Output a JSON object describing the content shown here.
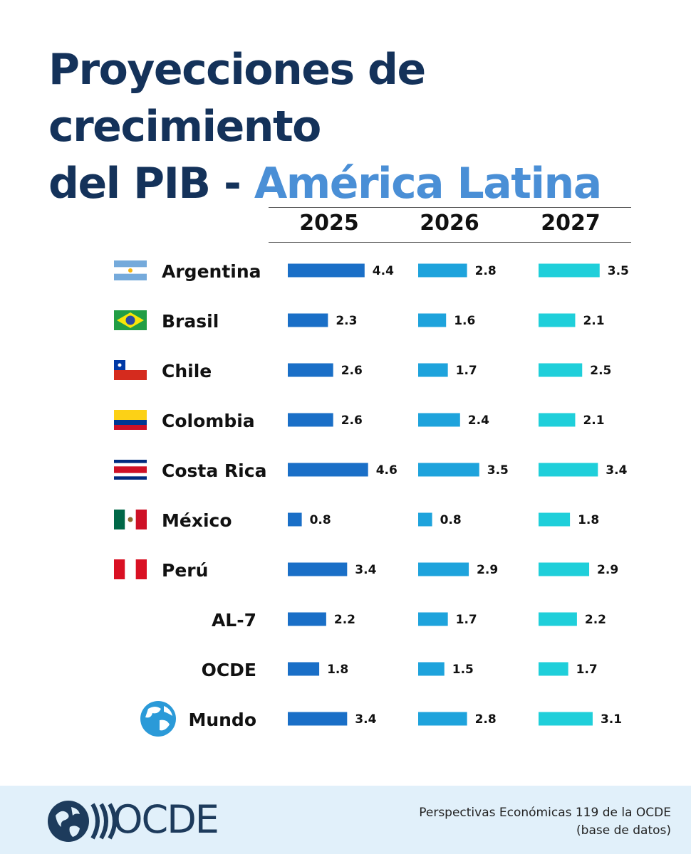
{
  "title_line1": "Proyecciones de crecimiento",
  "title_line2_dark": "del PIB - ",
  "title_line2_accent": "América Latina",
  "years": [
    "2025",
    "2026",
    "2027"
  ],
  "chart_data": {
    "type": "bar",
    "categories": [
      "Argentina",
      "Brasil",
      "Chile",
      "Colombia",
      "Costa Rica",
      "México",
      "Perú",
      "AL-7",
      "OCDE",
      "Mundo"
    ],
    "series": [
      {
        "name": "2025",
        "values": [
          4.4,
          2.3,
          2.6,
          2.6,
          4.6,
          0.8,
          3.4,
          2.2,
          1.8,
          3.4
        ]
      },
      {
        "name": "2026",
        "values": [
          2.8,
          1.6,
          1.7,
          2.4,
          3.5,
          0.8,
          2.9,
          1.7,
          1.5,
          2.8
        ]
      },
      {
        "name": "2027",
        "values": [
          3.5,
          2.1,
          2.5,
          2.1,
          3.4,
          1.8,
          2.9,
          2.2,
          1.7,
          3.1
        ]
      }
    ],
    "colors": [
      "#1a6fc7",
      "#1ea3dc",
      "#1fcfda"
    ],
    "icons": [
      "flag-argentina",
      "flag-brazil",
      "flag-chile",
      "flag-colombia",
      "flag-costa-rica",
      "flag-mexico",
      "flag-peru",
      "",
      "",
      "globe-icon"
    ]
  },
  "footer": {
    "logo_text": "OCDE",
    "source_line1": "Perspectivas Económicas 119 de la OCDE",
    "source_line2": "(base de datos)"
  }
}
